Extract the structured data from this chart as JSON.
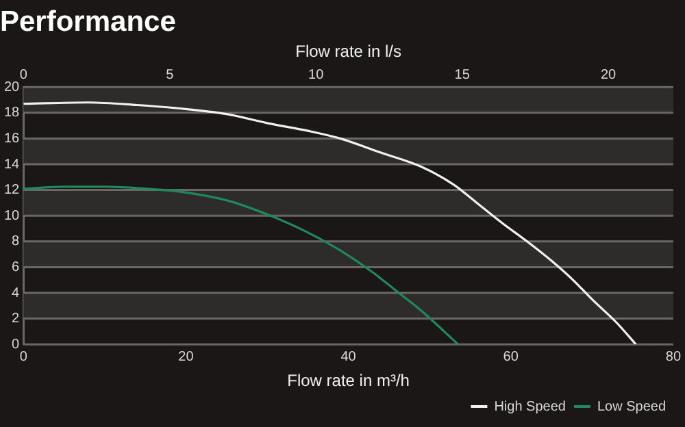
{
  "chart_data": {
    "type": "line",
    "title": "Performance",
    "xlabel": "Flow rate in m³/h",
    "x2label": "Flow rate in l/s",
    "xlim": [
      0,
      80
    ],
    "xticks": [
      0,
      20,
      40,
      60,
      80
    ],
    "x2lim": [
      0,
      22.22
    ],
    "x2ticks": [
      0,
      5,
      10,
      15,
      20
    ],
    "ylim": [
      0,
      20
    ],
    "yticks": [
      0,
      2,
      4,
      6,
      8,
      10,
      12,
      14,
      16,
      18,
      20
    ],
    "grid": "y",
    "legend": "bottom right",
    "marker": "none",
    "line_style": "solid",
    "series": [
      {
        "name": "High Speed",
        "color": "#f0f0f0",
        "x": [
          0,
          8,
          14,
          19,
          25,
          30,
          35,
          39,
          44,
          49,
          53,
          56,
          59,
          62,
          65,
          67.5,
          70,
          73,
          75.4
        ],
        "values": [
          18.7,
          18.8,
          18.6,
          18.35,
          17.9,
          17.2,
          16.6,
          16.0,
          14.9,
          13.8,
          12.4,
          10.9,
          9.4,
          8.0,
          6.5,
          5.1,
          3.5,
          1.7,
          0
        ]
      },
      {
        "name": "Low Speed",
        "color": "#1e8a5c",
        "x": [
          0,
          5,
          10,
          15,
          20,
          25,
          30,
          35,
          39,
          43,
          46,
          49,
          53.5
        ],
        "values": [
          12.1,
          12.25,
          12.25,
          12.1,
          11.8,
          11.2,
          10.1,
          8.7,
          7.3,
          5.6,
          4.1,
          2.6,
          0
        ]
      }
    ]
  }
}
